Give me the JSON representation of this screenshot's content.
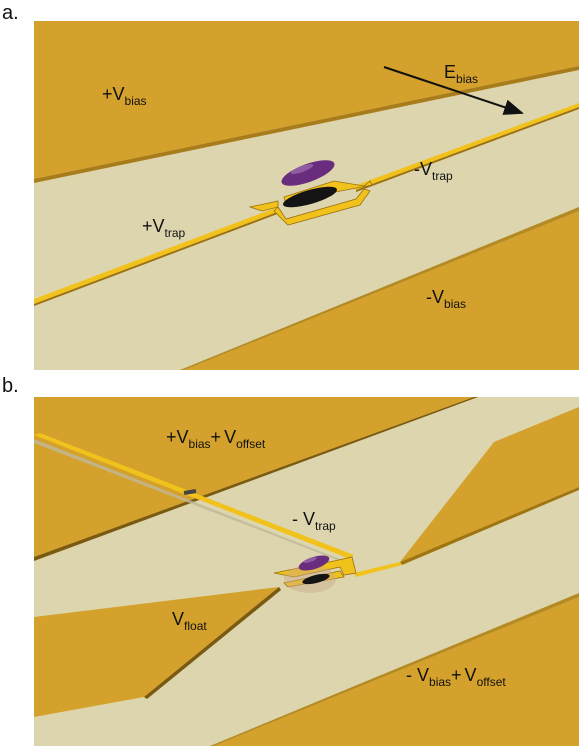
{
  "panel_a": {
    "letter": "a.",
    "labels": {
      "plus_v_bias": {
        "sign": "+",
        "var": "V",
        "sub": "bias"
      },
      "e_bias": {
        "sign": "",
        "var": "E",
        "sub": "bias"
      },
      "minus_v_trap": {
        "sign": "-",
        "var": "V",
        "sub": "trap"
      },
      "plus_v_trap": {
        "sign": "+",
        "var": "V",
        "sub": "trap"
      },
      "minus_v_bias": {
        "sign": "-",
        "var": "V",
        "sub": "bias"
      }
    }
  },
  "panel_b": {
    "letter": "b.",
    "labels": {
      "top_left": {
        "sign": "+",
        "var1": "V",
        "sub1": "bias",
        "join": "+",
        "var2": "V",
        "sub2": "offset"
      },
      "trap": {
        "sign": "- ",
        "var": "V",
        "sub": "trap"
      },
      "float": {
        "sign": "",
        "var": "V",
        "sub": "float"
      },
      "bottom_right": {
        "sign": "- ",
        "var1": "V",
        "sub1": "bias",
        "join": "+",
        "var2": "V",
        "sub2": "offset"
      }
    }
  },
  "colors": {
    "gold": "#d4a12c",
    "gold_dark": "#a87c1a",
    "cream": "#ddd5ad",
    "trace": "#f2c21c",
    "electron": "#6a2c7c",
    "shadow": "#141414"
  }
}
